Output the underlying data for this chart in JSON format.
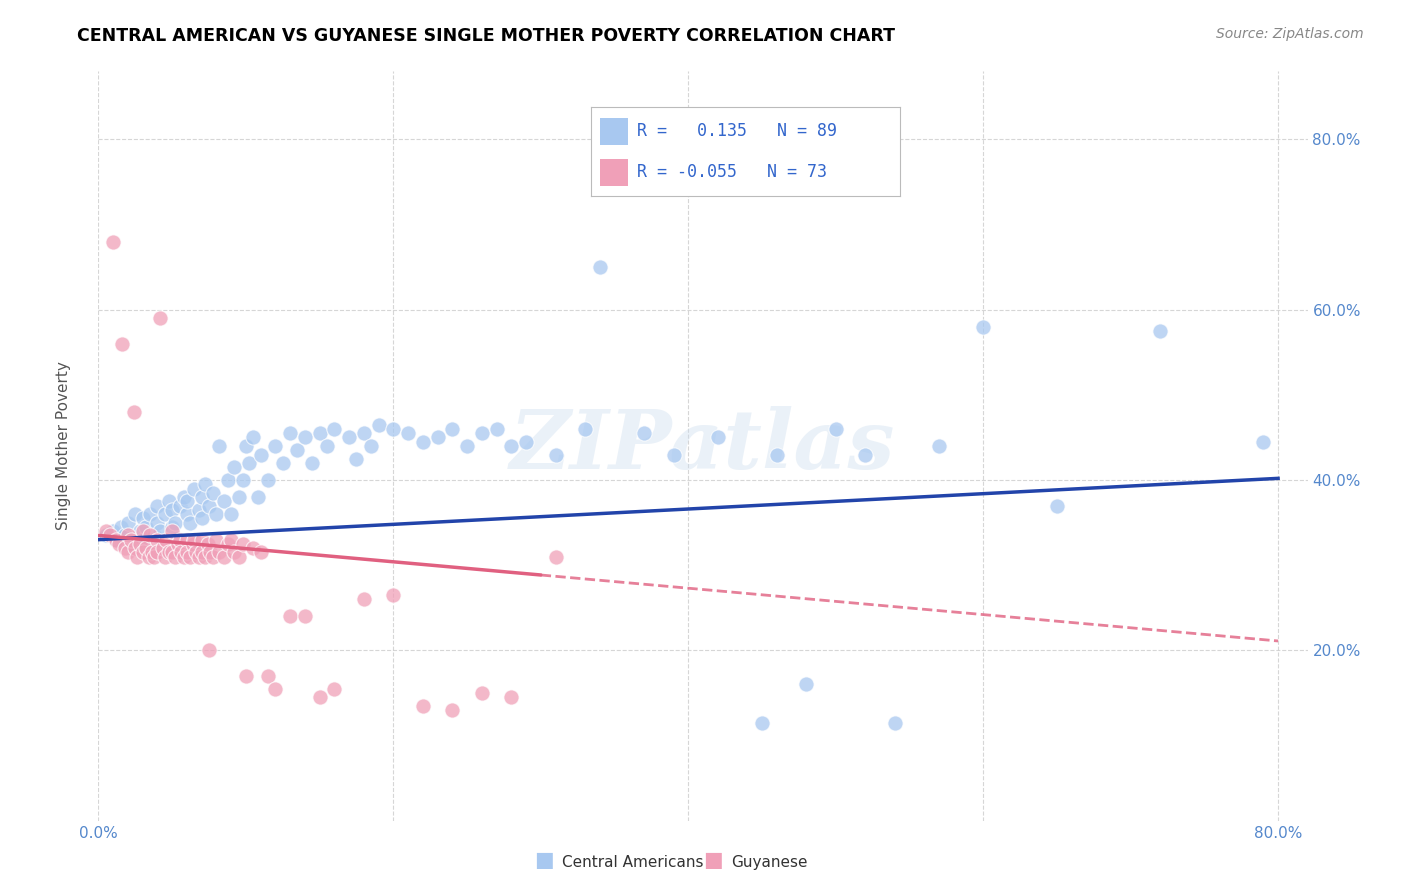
{
  "title": "CENTRAL AMERICAN VS GUYANESE SINGLE MOTHER POVERTY CORRELATION CHART",
  "source": "Source: ZipAtlas.com",
  "ylabel": "Single Mother Poverty",
  "xlim": [
    0.0,
    0.82
  ],
  "ylim": [
    0.0,
    0.88
  ],
  "xticks": [
    0.0,
    0.2,
    0.4,
    0.6,
    0.8
  ],
  "yticks": [
    0.2,
    0.4,
    0.6,
    0.8
  ],
  "xticklabels": [
    "0.0%",
    "",
    "",
    "",
    "80.0%"
  ],
  "yticklabels_right": [
    "20.0%",
    "40.0%",
    "60.0%",
    "80.0%"
  ],
  "grid_color": "#cccccc",
  "background_color": "#ffffff",
  "watermark": "ZIPatlas",
  "legend_label1": "Central Americans",
  "legend_label2": "Guyanese",
  "color_blue": "#a8c8f0",
  "color_pink": "#f0a0b8",
  "line_color_blue": "#2244aa",
  "line_color_pink": "#e06080",
  "blue_intercept": 0.33,
  "blue_slope": 0.09,
  "pink_intercept": 0.335,
  "pink_slope": -0.155,
  "blue_x": [
    0.005,
    0.01,
    0.012,
    0.015,
    0.018,
    0.02,
    0.022,
    0.025,
    0.028,
    0.03,
    0.03,
    0.032,
    0.035,
    0.038,
    0.04,
    0.04,
    0.042,
    0.045,
    0.048,
    0.05,
    0.05,
    0.052,
    0.055,
    0.058,
    0.06,
    0.06,
    0.062,
    0.065,
    0.068,
    0.07,
    0.07,
    0.072,
    0.075,
    0.078,
    0.08,
    0.082,
    0.085,
    0.088,
    0.09,
    0.092,
    0.095,
    0.098,
    0.1,
    0.102,
    0.105,
    0.108,
    0.11,
    0.115,
    0.12,
    0.125,
    0.13,
    0.135,
    0.14,
    0.145,
    0.15,
    0.155,
    0.16,
    0.17,
    0.175,
    0.18,
    0.185,
    0.19,
    0.2,
    0.21,
    0.22,
    0.23,
    0.24,
    0.25,
    0.26,
    0.27,
    0.28,
    0.29,
    0.31,
    0.33,
    0.34,
    0.37,
    0.39,
    0.42,
    0.45,
    0.46,
    0.48,
    0.5,
    0.52,
    0.54,
    0.57,
    0.6,
    0.65,
    0.72,
    0.79
  ],
  "blue_y": [
    0.335,
    0.34,
    0.33,
    0.345,
    0.335,
    0.35,
    0.325,
    0.36,
    0.34,
    0.355,
    0.33,
    0.345,
    0.36,
    0.335,
    0.37,
    0.35,
    0.34,
    0.36,
    0.375,
    0.345,
    0.365,
    0.35,
    0.37,
    0.38,
    0.36,
    0.375,
    0.35,
    0.39,
    0.365,
    0.38,
    0.355,
    0.395,
    0.37,
    0.385,
    0.36,
    0.44,
    0.375,
    0.4,
    0.36,
    0.415,
    0.38,
    0.4,
    0.44,
    0.42,
    0.45,
    0.38,
    0.43,
    0.4,
    0.44,
    0.42,
    0.455,
    0.435,
    0.45,
    0.42,
    0.455,
    0.44,
    0.46,
    0.45,
    0.425,
    0.455,
    0.44,
    0.465,
    0.46,
    0.455,
    0.445,
    0.45,
    0.46,
    0.44,
    0.455,
    0.46,
    0.44,
    0.445,
    0.43,
    0.46,
    0.65,
    0.455,
    0.43,
    0.45,
    0.115,
    0.43,
    0.16,
    0.46,
    0.43,
    0.115,
    0.44,
    0.58,
    0.37,
    0.575,
    0.445
  ],
  "pink_x": [
    0.005,
    0.008,
    0.01,
    0.012,
    0.014,
    0.016,
    0.018,
    0.02,
    0.02,
    0.022,
    0.024,
    0.025,
    0.026,
    0.028,
    0.03,
    0.03,
    0.032,
    0.034,
    0.035,
    0.036,
    0.038,
    0.04,
    0.04,
    0.042,
    0.044,
    0.045,
    0.046,
    0.048,
    0.05,
    0.05,
    0.052,
    0.054,
    0.055,
    0.056,
    0.058,
    0.06,
    0.06,
    0.062,
    0.064,
    0.065,
    0.066,
    0.068,
    0.07,
    0.07,
    0.072,
    0.074,
    0.075,
    0.076,
    0.078,
    0.08,
    0.082,
    0.085,
    0.088,
    0.09,
    0.092,
    0.095,
    0.098,
    0.1,
    0.105,
    0.11,
    0.115,
    0.12,
    0.13,
    0.14,
    0.15,
    0.16,
    0.18,
    0.2,
    0.22,
    0.24,
    0.26,
    0.28,
    0.31
  ],
  "pink_y": [
    0.34,
    0.335,
    0.68,
    0.33,
    0.325,
    0.56,
    0.32,
    0.335,
    0.315,
    0.33,
    0.48,
    0.32,
    0.31,
    0.325,
    0.34,
    0.315,
    0.32,
    0.31,
    0.335,
    0.315,
    0.31,
    0.33,
    0.315,
    0.59,
    0.32,
    0.31,
    0.33,
    0.315,
    0.34,
    0.315,
    0.31,
    0.325,
    0.33,
    0.315,
    0.31,
    0.33,
    0.315,
    0.31,
    0.325,
    0.33,
    0.315,
    0.31,
    0.33,
    0.315,
    0.31,
    0.325,
    0.2,
    0.315,
    0.31,
    0.33,
    0.315,
    0.31,
    0.325,
    0.33,
    0.315,
    0.31,
    0.325,
    0.17,
    0.32,
    0.315,
    0.17,
    0.155,
    0.24,
    0.24,
    0.145,
    0.155,
    0.26,
    0.265,
    0.135,
    0.13,
    0.15,
    0.145,
    0.31
  ]
}
